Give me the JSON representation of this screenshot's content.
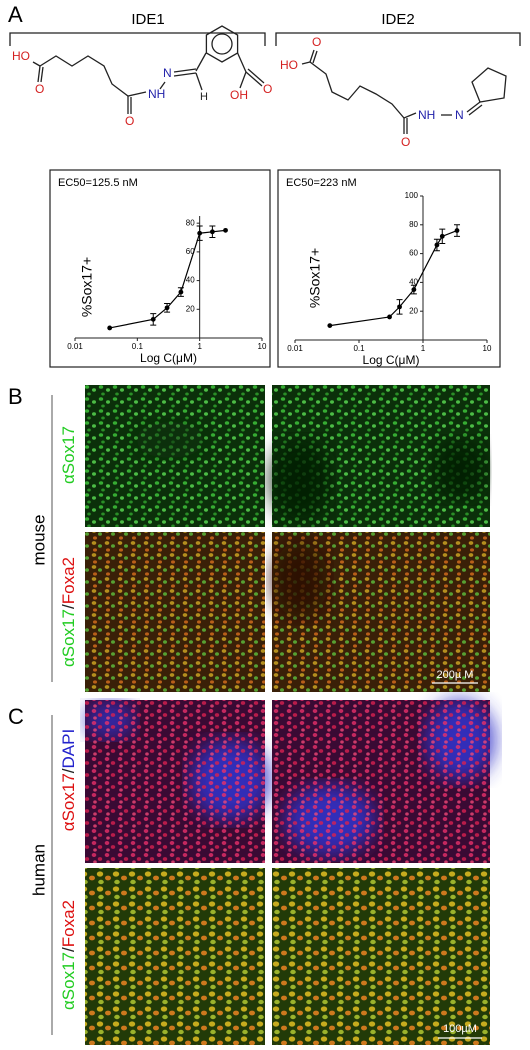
{
  "panel_labels": [
    "A",
    "B",
    "C"
  ],
  "structures": [
    {
      "name": "IDE1",
      "atoms": [
        "HO",
        "O",
        "O",
        "NH",
        "N",
        "H",
        "O",
        "OH"
      ]
    },
    {
      "name": "IDE2",
      "atoms": [
        "HO",
        "O",
        "O",
        "NH",
        "N"
      ]
    }
  ],
  "chart_data": [
    {
      "type": "line",
      "annotation": "EC50=125.5 nM",
      "x_label": "Log C(μM)",
      "y_label": "%Sox17+",
      "log_x": true,
      "xlim": [
        0.01,
        10
      ],
      "xticks": [
        0.01,
        0.1,
        1,
        10
      ],
      "ylim": [
        0,
        85
      ],
      "yticks": [
        20,
        40,
        60,
        80
      ],
      "y_axis_at_x": 1,
      "color": "#000000",
      "x": [
        0.036,
        0.18,
        0.3,
        0.5,
        1.0,
        1.6,
        2.6
      ],
      "values": [
        7,
        13,
        21,
        32,
        73,
        74,
        75
      ],
      "errors": [
        null,
        4,
        3,
        3,
        5,
        4,
        null
      ]
    },
    {
      "type": "line",
      "annotation": "EC50=223 nM",
      "x_label": "Log C(μM)",
      "y_label": "%Sox17+",
      "log_x": true,
      "xlim": [
        0.01,
        10
      ],
      "xticks": [
        0.01,
        0.1,
        1,
        10
      ],
      "ylim": [
        0,
        100
      ],
      "yticks": [
        20,
        40,
        60,
        80,
        100
      ],
      "y_axis_at_x": 1,
      "color": "#000000",
      "x": [
        0.035,
        0.3,
        0.43,
        0.72,
        1.65,
        2.0,
        3.4
      ],
      "values": [
        10,
        16,
        23,
        35,
        66,
        72,
        76
      ],
      "errors": [
        null,
        null,
        5,
        3,
        4,
        5,
        4
      ]
    }
  ],
  "images": {
    "mouse": {
      "species": "mouse",
      "row1": [
        {
          "text": "αSox17",
          "color": "#22cc22"
        }
      ],
      "row2": [
        {
          "text": "αSox17",
          "color": "#22cc22"
        },
        {
          "text": "/",
          "color": "#222222"
        },
        {
          "text": "Foxa2",
          "color": "#dd1111"
        }
      ],
      "scale": "200µ M"
    },
    "human": {
      "species": "human",
      "row1": [
        {
          "text": "αSox17",
          "color": "#dd1111"
        },
        {
          "text": "/",
          "color": "#222222"
        },
        {
          "text": "DAPI",
          "color": "#2222cc"
        }
      ],
      "row2": [
        {
          "text": "αSox17",
          "color": "#22cc22"
        },
        {
          "text": "/",
          "color": "#222222"
        },
        {
          "text": "Foxa2",
          "color": "#dd1111"
        }
      ],
      "scale": "100µM"
    }
  }
}
